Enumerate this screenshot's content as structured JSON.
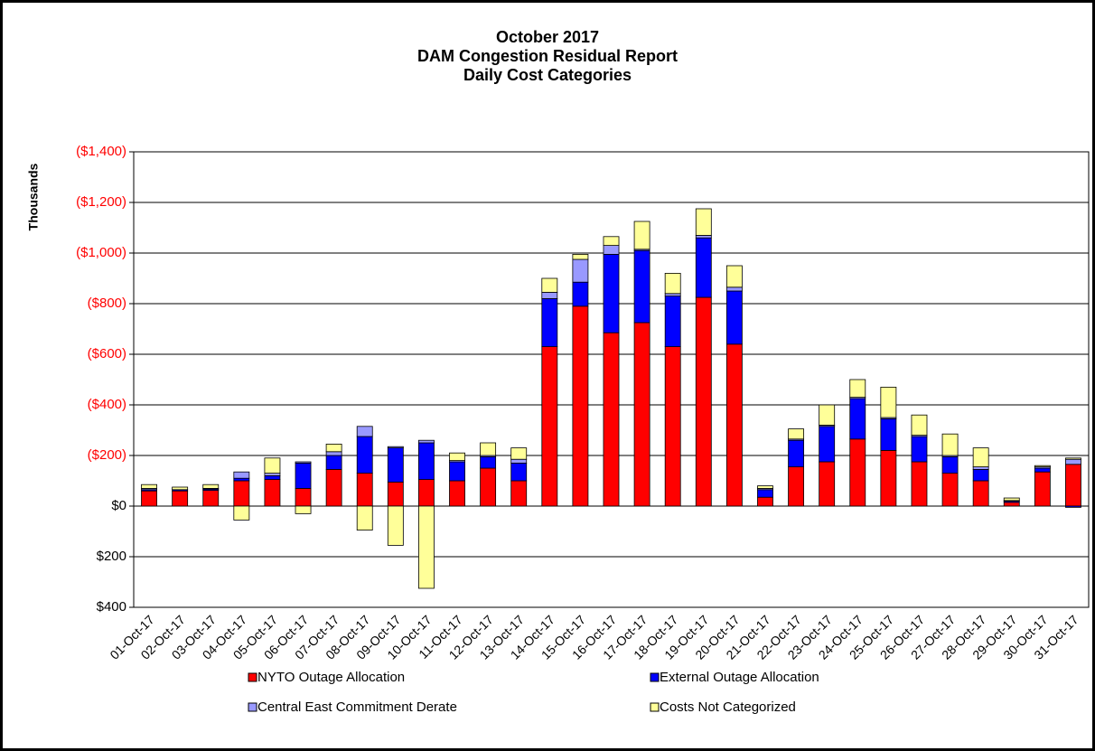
{
  "chart_data": {
    "type": "stacked_bar",
    "title_lines": [
      "October 2017",
      "DAM Congestion Residual Report",
      "Daily Cost Categories"
    ],
    "y_label": "Thousands",
    "categories": [
      "01-Oct-17",
      "02-Oct-17",
      "03-Oct-17",
      "04-Oct-17",
      "05-Oct-17",
      "06-Oct-17",
      "07-Oct-17",
      "08-Oct-17",
      "09-Oct-17",
      "10-Oct-17",
      "11-Oct-17",
      "12-Oct-17",
      "13-Oct-17",
      "14-Oct-17",
      "15-Oct-17",
      "16-Oct-17",
      "17-Oct-17",
      "18-Oct-17",
      "19-Oct-17",
      "20-Oct-17",
      "21-Oct-17",
      "22-Oct-17",
      "23-Oct-17",
      "24-Oct-17",
      "25-Oct-17",
      "26-Oct-17",
      "27-Oct-17",
      "28-Oct-17",
      "29-Oct-17",
      "30-Oct-17",
      "31-Oct-17"
    ],
    "series": [
      {
        "name": "NYTO Outage Allocation",
        "color": "#ff0000",
        "values": [
          60,
          60,
          62,
          100,
          105,
          70,
          145,
          130,
          95,
          105,
          100,
          150,
          100,
          630,
          790,
          685,
          725,
          630,
          825,
          640,
          35,
          155,
          175,
          265,
          220,
          175,
          130,
          100,
          15,
          135,
          165
        ]
      },
      {
        "name": "External Outage Allocation",
        "color": "#0000ff",
        "values": [
          5,
          5,
          5,
          10,
          15,
          100,
          55,
          145,
          135,
          145,
          75,
          45,
          70,
          190,
          95,
          310,
          285,
          200,
          235,
          210,
          30,
          105,
          140,
          160,
          125,
          100,
          65,
          45,
          5,
          15,
          -5
        ]
      },
      {
        "name": "Central East Commitment Derate",
        "color": "#9999ff",
        "values": [
          5,
          0,
          3,
          25,
          10,
          5,
          15,
          40,
          5,
          10,
          5,
          5,
          15,
          25,
          90,
          35,
          5,
          10,
          10,
          15,
          5,
          5,
          5,
          5,
          5,
          5,
          5,
          10,
          2,
          5,
          20
        ]
      },
      {
        "name": "Costs Not Categorized",
        "color": "#ffff99",
        "values": [
          15,
          10,
          15,
          -55,
          60,
          -30,
          30,
          -95,
          -155,
          -325,
          30,
          50,
          45,
          55,
          20,
          35,
          110,
          80,
          105,
          85,
          10,
          40,
          80,
          70,
          120,
          80,
          85,
          75,
          10,
          5,
          5
        ]
      }
    ],
    "ylim": [
      -400,
      1400
    ],
    "yticks": [
      {
        "value": 1400,
        "label": "($1,400)"
      },
      {
        "value": 1200,
        "label": "($1,200)"
      },
      {
        "value": 1000,
        "label": "($1,000)"
      },
      {
        "value": 800,
        "label": "($800)"
      },
      {
        "value": 600,
        "label": "($600)"
      },
      {
        "value": 400,
        "label": "($400)"
      },
      {
        "value": 200,
        "label": "($200)"
      },
      {
        "value": 0,
        "label": "$0"
      },
      {
        "value": -200,
        "label": "$200"
      },
      {
        "value": -400,
        "label": "$400"
      }
    ],
    "grid": true
  }
}
